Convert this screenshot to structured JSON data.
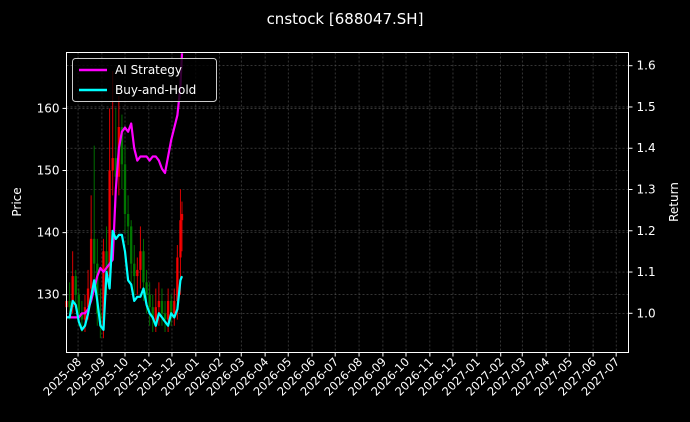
{
  "chart_data": {
    "type": "line",
    "title": "cnstock [688047.SH]",
    "ylabel_left": "Price",
    "ylabel_right": "Return",
    "ylim_left": [
      120.7,
      169.0
    ],
    "ylim_right": [
      0.905,
      1.632
    ],
    "xlim": [
      "2025-07-17",
      "2027-07-17"
    ],
    "grid": true,
    "legend_position": "top-left",
    "x_tick_labels": [
      "2025-08",
      "2025-09",
      "2025-10",
      "2025-11",
      "2025-12",
      "2026-01",
      "2026-02",
      "2026-03",
      "2026-04",
      "2026-05",
      "2026-06",
      "2026-07",
      "2026-08",
      "2026-09",
      "2026-10",
      "2026-11",
      "2026-12",
      "2027-01",
      "2027-02",
      "2027-03",
      "2027-04",
      "2027-05",
      "2027-06",
      "2027-07"
    ],
    "left_ticks": [
      130,
      140,
      150,
      160
    ],
    "right_ticks": [
      "1.0",
      "1.1",
      "1.2",
      "1.3",
      "1.4",
      "1.5",
      "1.6"
    ],
    "dates": [
      "2025-07-17",
      "2025-07-21",
      "2025-07-25",
      "2025-07-29",
      "2025-08-02",
      "2025-08-06",
      "2025-08-10",
      "2025-08-14",
      "2025-08-18",
      "2025-08-22",
      "2025-08-26",
      "2025-08-30",
      "2025-09-03",
      "2025-09-07",
      "2025-09-11",
      "2025-09-15",
      "2025-09-19",
      "2025-09-23",
      "2025-09-27",
      "2025-10-01",
      "2025-10-05",
      "2025-10-09",
      "2025-10-13",
      "2025-10-17",
      "2025-10-21",
      "2025-10-25",
      "2025-10-29",
      "2025-11-02",
      "2025-11-06",
      "2025-11-10",
      "2025-11-14",
      "2025-11-18",
      "2025-11-22",
      "2025-11-26",
      "2025-11-30",
      "2025-12-04",
      "2025-12-08",
      "2025-12-12",
      "2025-12-14"
    ],
    "series": [
      {
        "name": "AI Strategy",
        "color": "#ff00ff",
        "axis": "right",
        "values": [
          0.99,
          0.99,
          0.99,
          0.99,
          0.99,
          1.0,
          1.0,
          1.01,
          1.03,
          1.06,
          1.09,
          1.11,
          1.1,
          1.11,
          1.12,
          1.13,
          1.3,
          1.4,
          1.44,
          1.45,
          1.44,
          1.46,
          1.4,
          1.37,
          1.38,
          1.38,
          1.38,
          1.37,
          1.38,
          1.38,
          1.37,
          1.35,
          1.34,
          1.38,
          1.42,
          1.45,
          1.48,
          1.55,
          1.63
        ]
      },
      {
        "name": "Buy-and-Hold",
        "color": "#00ffff",
        "axis": "right",
        "values": [
          0.99,
          0.99,
          1.03,
          1.02,
          0.98,
          0.96,
          0.97,
          1.0,
          1.04,
          1.08,
          1.03,
          0.97,
          0.96,
          1.1,
          1.06,
          1.2,
          1.18,
          1.19,
          1.19,
          1.15,
          1.08,
          1.07,
          1.03,
          1.04,
          1.04,
          1.06,
          1.02,
          1.0,
          0.99,
          0.97,
          1.0,
          0.99,
          0.98,
          0.97,
          1.0,
          0.99,
          1.01,
          1.08,
          1.09
        ]
      }
    ],
    "candles": {
      "up_color": "#ff0000",
      "down_color": "#008000",
      "open": [
        128,
        129,
        128,
        133,
        130,
        127,
        126,
        128,
        131,
        139,
        135,
        127,
        125,
        137,
        133,
        150,
        152,
        149,
        157,
        151,
        143,
        141,
        135,
        133,
        134,
        137,
        132,
        130,
        128,
        126,
        128,
        129,
        127,
        126,
        129,
        127,
        129,
        136,
        142
      ],
      "close": [
        129,
        128,
        133,
        130,
        127,
        126,
        128,
        131,
        139,
        135,
        127,
        125,
        137,
        133,
        150,
        152,
        149,
        157,
        151,
        143,
        141,
        135,
        133,
        134,
        137,
        132,
        130,
        128,
        126,
        128,
        129,
        127,
        126,
        129,
        127,
        129,
        136,
        142,
        143
      ],
      "high": [
        131,
        132,
        137,
        134,
        131,
        129,
        130,
        134,
        146,
        154,
        139,
        131,
        139,
        141,
        160,
        166,
        160,
        162,
        159,
        154,
        146,
        142,
        138,
        136,
        141,
        139,
        134,
        132,
        130,
        131,
        132,
        131,
        129,
        131,
        130,
        131,
        138,
        147,
        145
      ],
      "low": [
        126,
        126,
        127,
        128,
        125,
        124,
        124,
        126,
        129,
        132,
        125,
        123,
        123,
        130,
        131,
        146,
        144,
        146,
        147,
        140,
        138,
        132,
        130,
        130,
        131,
        129,
        127,
        125,
        124,
        124,
        125,
        125,
        124,
        124,
        125,
        125,
        126,
        130,
        137
      ]
    }
  }
}
